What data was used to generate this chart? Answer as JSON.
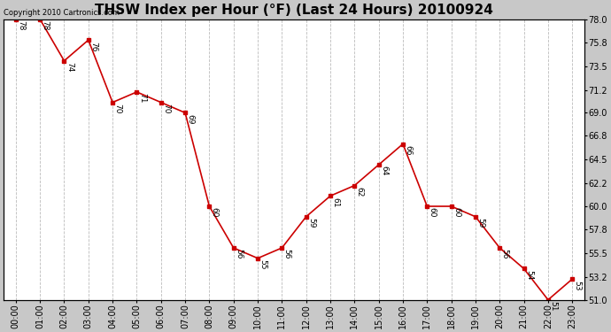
{
  "title": "THSW Index per Hour (°F) (Last 24 Hours) 20100924",
  "copyright_text": "Copyright 2010 Cartronics.com",
  "hours": [
    "00:00",
    "01:00",
    "02:00",
    "03:00",
    "04:00",
    "05:00",
    "06:00",
    "07:00",
    "08:00",
    "09:00",
    "10:00",
    "11:00",
    "12:00",
    "13:00",
    "14:00",
    "15:00",
    "16:00",
    "17:00",
    "18:00",
    "19:00",
    "20:00",
    "21:00",
    "22:00",
    "23:00"
  ],
  "data_points": [
    [
      0,
      78
    ],
    [
      1,
      78
    ],
    [
      2,
      74
    ],
    [
      3,
      76
    ],
    [
      4,
      70
    ],
    [
      5,
      71
    ],
    [
      6,
      70
    ],
    [
      7,
      69
    ],
    [
      8,
      60
    ],
    [
      9,
      56
    ],
    [
      10,
      55
    ],
    [
      11,
      56
    ],
    [
      12,
      59
    ],
    [
      13,
      61
    ],
    [
      14,
      62
    ],
    [
      15,
      64
    ],
    [
      16,
      66
    ],
    [
      17,
      60
    ],
    [
      18,
      60
    ],
    [
      19,
      59
    ],
    [
      20,
      56
    ],
    [
      21,
      54
    ],
    [
      22,
      51
    ],
    [
      23,
      53
    ]
  ],
  "line_color": "#cc0000",
  "bg_color": "#c8c8c8",
  "plot_bg": "#ffffff",
  "grid_color": "#bbbbbb",
  "yticks": [
    51.0,
    53.2,
    55.5,
    57.8,
    60.0,
    62.2,
    64.5,
    66.8,
    69.0,
    71.2,
    73.5,
    75.8,
    78.0
  ],
  "ylim": [
    51.0,
    78.0
  ],
  "title_fontsize": 11,
  "label_fontsize": 7,
  "annotation_fontsize": 6.5,
  "copyright_fontsize": 6
}
